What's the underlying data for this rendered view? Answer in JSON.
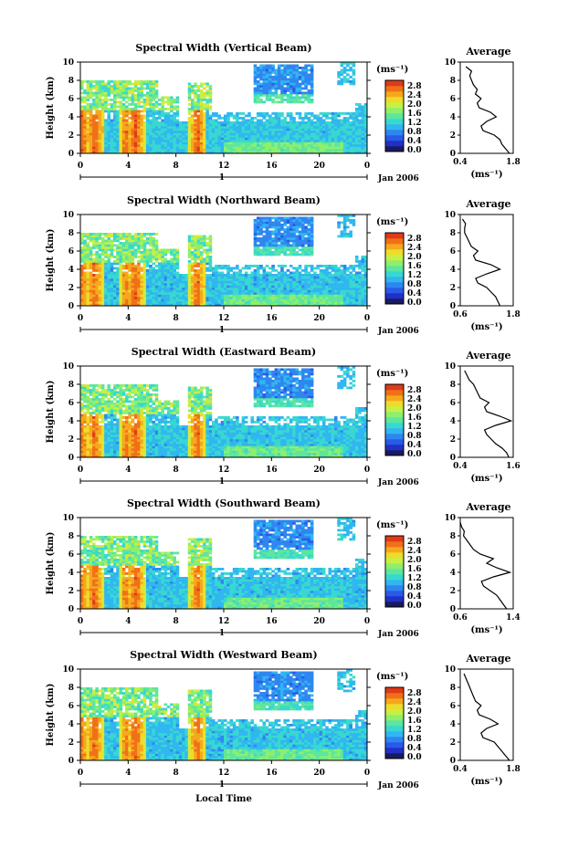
{
  "colorbar": {
    "unit_label": "(ms⁻¹)",
    "ticks": [
      "0.0",
      "0.4",
      "0.8",
      "1.2",
      "1.6",
      "2.0",
      "2.4",
      "2.8"
    ],
    "colors": [
      "#1a1a5e",
      "#2030c8",
      "#2a5ae8",
      "#2f86f0",
      "#30b6f0",
      "#38d8d0",
      "#5ce6a0",
      "#8fef6a",
      "#c8ef46",
      "#eddc2a",
      "#f5a81c",
      "#f07018",
      "#e03a18"
    ]
  },
  "ylabel": "Height (km)",
  "yticks": [
    "0",
    "2",
    "4",
    "6",
    "8",
    "10"
  ],
  "xticks": [
    "0",
    "4",
    "8",
    "12",
    "16",
    "20",
    "0"
  ],
  "day_label": "1",
  "date_label": "Jan 2006",
  "xlabel": "Local Time",
  "avg_title": "Average",
  "avg_xlabel": "(ms⁻¹)",
  "chart_data": [
    {
      "type": "heatmap",
      "title": "Spectral Width (Vertical Beam)",
      "xlabel": "",
      "ylabel": "Height (km)",
      "xlim": [
        0,
        24
      ],
      "ylim": [
        0,
        10
      ],
      "profile": {
        "title": "Average",
        "xlim": [
          0.4,
          1.8
        ],
        "xticks": [
          "0.4",
          "1.8"
        ],
        "height_km": [
          0,
          0.5,
          1,
          1.5,
          2,
          2.5,
          3,
          3.5,
          4,
          4.5,
          5,
          5.5,
          6,
          6.5,
          7,
          7.5,
          8,
          8.5,
          9,
          9.5
        ],
        "width_ms": [
          1.7,
          1.6,
          1.5,
          1.45,
          1.3,
          1.0,
          0.95,
          1.1,
          1.35,
          1.2,
          0.9,
          0.85,
          0.95,
          0.8,
          0.85,
          0.75,
          0.7,
          0.65,
          0.7,
          0.55
        ]
      }
    },
    {
      "type": "heatmap",
      "title": "Spectral Width (Northward Beam)",
      "xlabel": "",
      "ylabel": "Height (km)",
      "xlim": [
        0,
        24
      ],
      "ylim": [
        0,
        10
      ],
      "profile": {
        "title": "Average",
        "xlim": [
          0.6,
          1.8
        ],
        "xticks": [
          "0.6",
          "1.8"
        ],
        "height_km": [
          0,
          0.5,
          1,
          1.5,
          2,
          2.5,
          3,
          3.5,
          4,
          4.5,
          5,
          5.5,
          6,
          6.5,
          7,
          7.5,
          8,
          8.5,
          9,
          9.5
        ],
        "width_ms": [
          1.5,
          1.45,
          1.4,
          1.3,
          1.2,
          1.0,
          0.95,
          1.2,
          1.5,
          1.3,
          0.95,
          0.9,
          1.0,
          0.85,
          0.8,
          0.75,
          0.7,
          0.7,
          0.72,
          0.65
        ]
      }
    },
    {
      "type": "heatmap",
      "title": "Spectral Width (Eastward Beam)",
      "xlabel": "",
      "ylabel": "Height (km)",
      "xlim": [
        0,
        24
      ],
      "ylim": [
        0,
        10
      ],
      "profile": {
        "title": "Average",
        "xlim": [
          0.4,
          1.6
        ],
        "xticks": [
          "0.4",
          "1.6"
        ],
        "height_km": [
          0,
          0.5,
          1,
          1.5,
          2,
          2.5,
          3,
          3.5,
          4,
          4.5,
          5,
          5.5,
          6,
          6.5,
          7,
          7.5,
          8,
          8.5,
          9,
          9.5
        ],
        "width_ms": [
          1.5,
          1.45,
          1.35,
          1.2,
          1.1,
          1.0,
          0.95,
          1.2,
          1.55,
          1.3,
          1.0,
          0.95,
          1.05,
          0.85,
          0.8,
          0.75,
          0.7,
          0.6,
          0.55,
          0.5
        ]
      }
    },
    {
      "type": "heatmap",
      "title": "Spectral Width (Southward Beam)",
      "xlabel": "",
      "ylabel": "Height (km)",
      "xlim": [
        0,
        24
      ],
      "ylim": [
        0,
        10
      ],
      "profile": {
        "title": "Average",
        "xlim": [
          0.6,
          1.4
        ],
        "xticks": [
          "0.6",
          "1.4"
        ],
        "height_km": [
          0,
          0.5,
          1,
          1.5,
          2,
          2.5,
          3,
          3.5,
          4,
          4.5,
          5,
          5.5,
          6,
          6.5,
          7,
          7.5,
          8,
          8.5,
          9,
          9.5
        ],
        "width_ms": [
          1.3,
          1.25,
          1.2,
          1.15,
          1.05,
          0.95,
          0.92,
          1.1,
          1.35,
          1.15,
          1.0,
          1.1,
          0.9,
          0.8,
          0.75,
          0.7,
          0.65,
          0.66,
          0.62,
          0.6
        ]
      }
    },
    {
      "type": "heatmap",
      "title": "Spectral Width (Westward Beam)",
      "xlabel": "Local Time",
      "ylabel": "Height (km)",
      "xlim": [
        0,
        24
      ],
      "ylim": [
        0,
        10
      ],
      "profile": {
        "title": "Average",
        "xlim": [
          0.4,
          1.8
        ],
        "xticks": [
          "0.4",
          "1.8"
        ],
        "height_km": [
          0,
          0.5,
          1,
          1.5,
          2,
          2.5,
          3,
          3.5,
          4,
          4.5,
          5,
          5.5,
          6,
          6.5,
          7,
          7.5,
          8,
          8.5,
          9,
          9.5
        ],
        "width_ms": [
          1.7,
          1.6,
          1.5,
          1.4,
          1.3,
          1.0,
          0.95,
          1.1,
          1.4,
          1.2,
          0.9,
          0.85,
          0.95,
          0.8,
          0.75,
          0.7,
          0.65,
          0.6,
          0.55,
          0.5
        ]
      }
    }
  ]
}
